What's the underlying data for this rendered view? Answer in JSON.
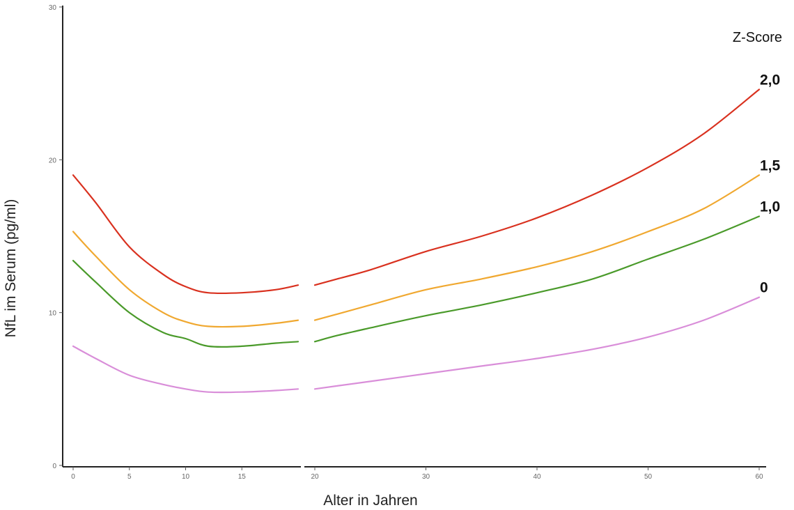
{
  "chart_data": {
    "type": "line",
    "xlabel": "Alter in Jahren",
    "ylabel": "NfL im Serum (pg/ml)",
    "xlim": [
      0,
      60
    ],
    "ylim": [
      0,
      30
    ],
    "x_ticks": [
      "0",
      "5",
      "10",
      "15",
      "20",
      "30",
      "40",
      "50",
      "60"
    ],
    "y_ticks": [
      "0",
      "10",
      "20",
      "30"
    ],
    "legend_title": "Z-Score",
    "segments": [
      {
        "x_from": 0,
        "x_to": 20,
        "x_ticks": [
          0,
          5,
          10,
          15
        ]
      },
      {
        "x_from": 20,
        "x_to": 60,
        "x_ticks": [
          20,
          30,
          40,
          50,
          60
        ]
      }
    ],
    "series": [
      {
        "name": "2,0",
        "color": "#d9311f",
        "x": [
          0,
          2,
          5,
          8,
          10,
          12,
          15,
          18,
          20,
          22,
          25,
          30,
          35,
          40,
          45,
          50,
          55,
          60
        ],
        "y": [
          19.0,
          17.2,
          14.3,
          12.5,
          11.7,
          11.3,
          11.3,
          11.5,
          11.8,
          12.2,
          12.8,
          14.0,
          15.0,
          16.2,
          17.7,
          19.5,
          21.7,
          24.6
        ]
      },
      {
        "name": "1,5",
        "color": "#f0a830",
        "x": [
          0,
          2,
          5,
          8,
          10,
          12,
          15,
          18,
          20,
          22,
          25,
          30,
          35,
          40,
          45,
          50,
          55,
          60
        ],
        "y": [
          15.3,
          13.7,
          11.5,
          10.0,
          9.4,
          9.1,
          9.1,
          9.3,
          9.5,
          9.9,
          10.5,
          11.5,
          12.2,
          13.0,
          14.0,
          15.3,
          16.8,
          19.0
        ]
      },
      {
        "name": "1,0",
        "color": "#4a9a2a",
        "x": [
          0,
          2,
          5,
          8,
          10,
          12,
          15,
          18,
          20,
          22,
          25,
          30,
          35,
          40,
          45,
          50,
          55,
          60
        ],
        "y": [
          13.4,
          12.0,
          10.0,
          8.7,
          8.3,
          7.8,
          7.8,
          8.0,
          8.1,
          8.5,
          9.0,
          9.8,
          10.5,
          11.3,
          12.2,
          13.5,
          14.8,
          16.3
        ]
      },
      {
        "name": "0",
        "color": "#d98ed9",
        "x": [
          0,
          2,
          5,
          8,
          10,
          12,
          15,
          18,
          20,
          22,
          25,
          30,
          35,
          40,
          45,
          50,
          55,
          60
        ],
        "y": [
          7.8,
          7.0,
          5.9,
          5.3,
          5.0,
          4.8,
          4.8,
          4.9,
          5.0,
          5.2,
          5.5,
          6.0,
          6.5,
          7.0,
          7.6,
          8.4,
          9.5,
          11.0
        ]
      }
    ]
  }
}
